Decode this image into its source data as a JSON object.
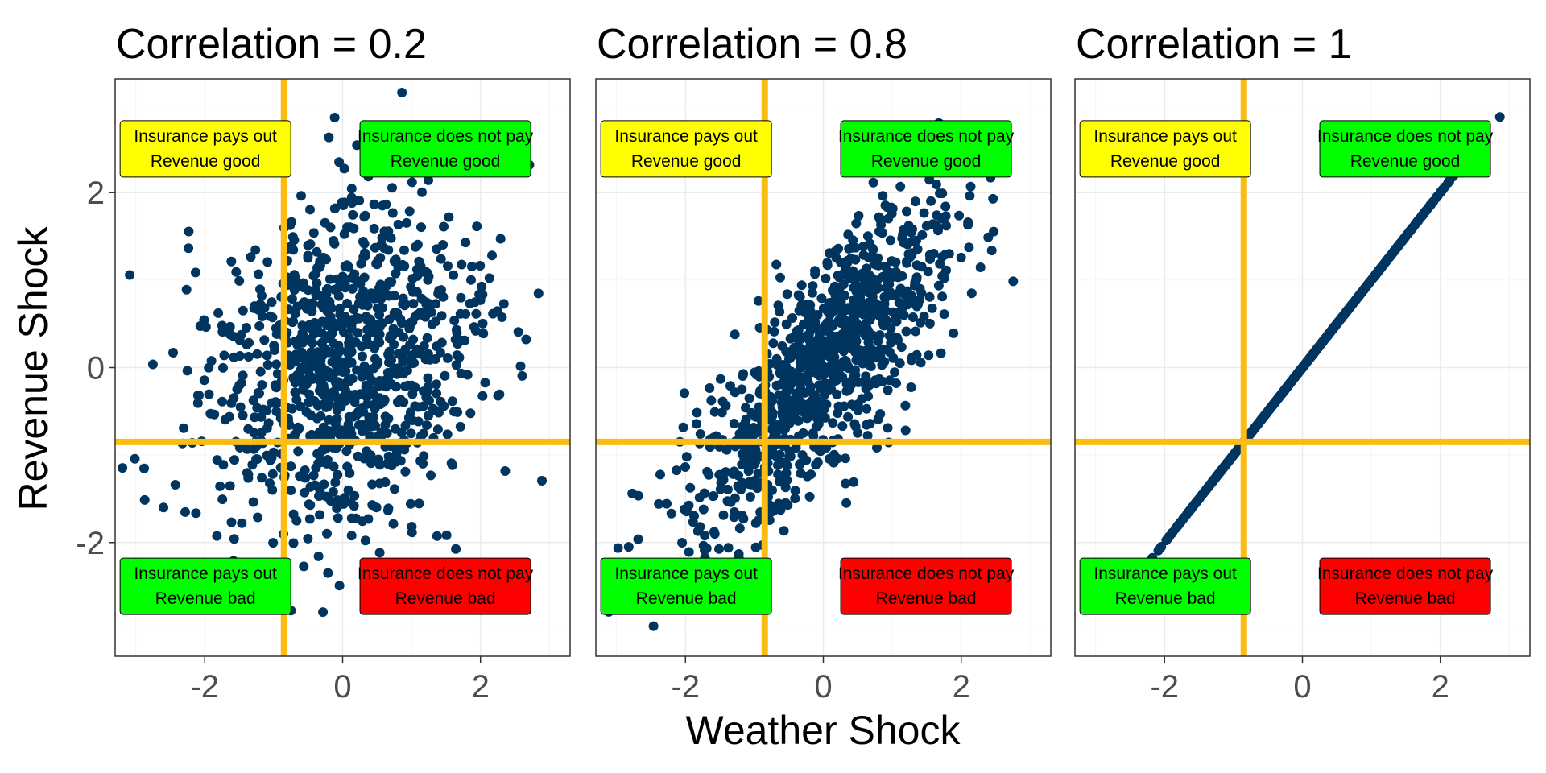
{
  "chart_data": [
    {
      "type": "scatter",
      "title": "Correlation = 0.2",
      "correlation": 0.2,
      "n_points": 1000,
      "xlim": [
        -3.3,
        3.3
      ],
      "ylim": [
        -3.3,
        3.3
      ],
      "x_ticks": [
        -2,
        0,
        2
      ],
      "y_ticks": [
        -2,
        0,
        2
      ],
      "x_tick_labels": [
        "-2",
        "0",
        "2"
      ],
      "y_tick_labels": [
        "-2",
        "0",
        "2"
      ],
      "threshold_x": -0.85,
      "threshold_y": -0.85,
      "labels": [
        {
          "text": [
            "Insurance pays out",
            "Revenue good"
          ],
          "color": "#ffff00",
          "x": -1.99,
          "y": 2.5
        },
        {
          "text": [
            "Insurance does not pay",
            "Revenue good"
          ],
          "color": "#00ff00",
          "x": 1.49,
          "y": 2.5
        },
        {
          "text": [
            "Insurance pays out",
            "Revenue bad"
          ],
          "color": "#00ff00",
          "x": -1.99,
          "y": -2.5
        },
        {
          "text": [
            "Insurance does not pay",
            "Revenue bad"
          ],
          "color": "#ff0000",
          "x": 1.49,
          "y": -2.5
        }
      ]
    },
    {
      "type": "scatter",
      "title": "Correlation = 0.8",
      "correlation": 0.8,
      "n_points": 1000,
      "xlim": [
        -3.3,
        3.3
      ],
      "ylim": [
        -3.3,
        3.3
      ],
      "x_ticks": [
        -2,
        0,
        2
      ],
      "y_ticks": [
        -2,
        0,
        2
      ],
      "x_tick_labels": [
        "-2",
        "0",
        "2"
      ],
      "y_tick_labels": [
        "-2",
        "0",
        "2"
      ],
      "threshold_x": -0.85,
      "threshold_y": -0.85,
      "labels": [
        {
          "text": [
            "Insurance pays out",
            "Revenue good"
          ],
          "color": "#ffff00",
          "x": -1.99,
          "y": 2.5
        },
        {
          "text": [
            "Insurance does not pay",
            "Revenue good"
          ],
          "color": "#00ff00",
          "x": 1.49,
          "y": 2.5
        },
        {
          "text": [
            "Insurance pays out",
            "Revenue bad"
          ],
          "color": "#00ff00",
          "x": -1.99,
          "y": -2.5
        },
        {
          "text": [
            "Insurance does not pay",
            "Revenue bad"
          ],
          "color": "#ff0000",
          "x": 1.49,
          "y": -2.5
        }
      ]
    },
    {
      "type": "scatter",
      "title": "Correlation = 1",
      "correlation": 1,
      "n_points": 1000,
      "xlim": [
        -3.3,
        3.3
      ],
      "ylim": [
        -3.3,
        3.3
      ],
      "x_ticks": [
        -2,
        0,
        2
      ],
      "y_ticks": [
        -2,
        0,
        2
      ],
      "x_tick_labels": [
        "-2",
        "0",
        "2"
      ],
      "y_tick_labels": [
        "-2",
        "0",
        "2"
      ],
      "threshold_x": -0.85,
      "threshold_y": -0.85,
      "labels": [
        {
          "text": [
            "Insurance pays out",
            "Revenue good"
          ],
          "color": "#ffff00",
          "x": -1.99,
          "y": 2.5
        },
        {
          "text": [
            "Insurance does not pay",
            "Revenue good"
          ],
          "color": "#00ff00",
          "x": 1.49,
          "y": 2.5
        },
        {
          "text": [
            "Insurance pays out",
            "Revenue bad"
          ],
          "color": "#00ff00",
          "x": -1.99,
          "y": -2.5
        },
        {
          "text": [
            "Insurance does not pay",
            "Revenue bad"
          ],
          "color": "#ff0000",
          "x": 1.49,
          "y": -2.5
        }
      ]
    }
  ],
  "shared": {
    "xlabel": "Weather Shock",
    "ylabel": "Revenue Shock"
  },
  "colors": {
    "points": "#003560",
    "threshold_lines": "#fbbd13",
    "grid_major": "#ebebeb",
    "grid_minor": "#f5f5f5",
    "panel_border": "#333333",
    "tick_text": "#4d4d4d"
  }
}
